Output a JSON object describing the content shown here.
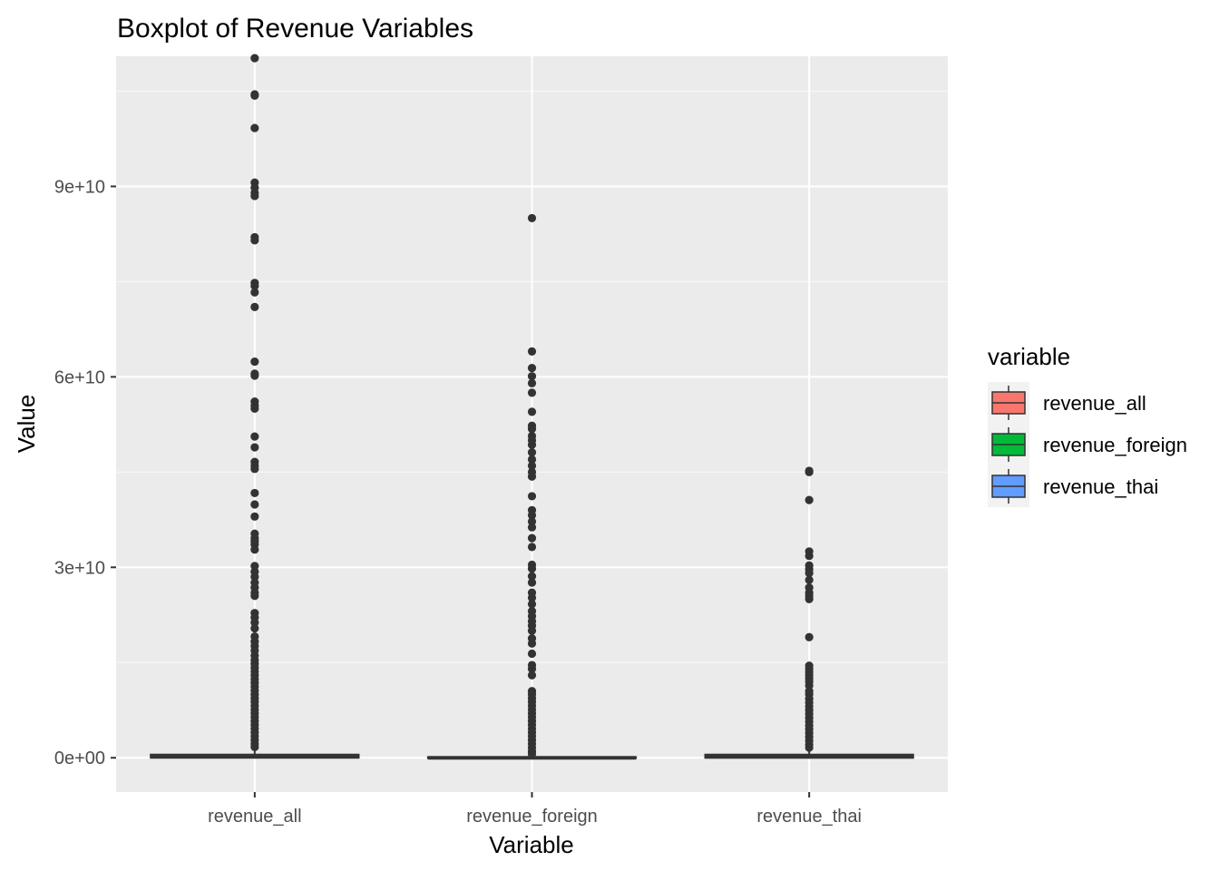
{
  "chart_data": {
    "type": "boxplot",
    "title": "Boxplot of Revenue Variables",
    "xlabel": "Variable",
    "ylabel": "Value",
    "ylim": [
      -5400000000,
      110500000000
    ],
    "y_ticks": [
      {
        "value": 0,
        "label": "0e+00"
      },
      {
        "value": 30000000000,
        "label": "3e+10"
      },
      {
        "value": 60000000000,
        "label": "6e+10"
      },
      {
        "value": 90000000000,
        "label": "9e+10"
      }
    ],
    "y_minor_ticks": [
      15000000000,
      45000000000,
      75000000000,
      105000000000
    ],
    "grid": true,
    "legend": {
      "title": "variable",
      "position": "right",
      "entries": [
        {
          "label": "revenue_all",
          "color": "#F8766D"
        },
        {
          "label": "revenue_foreign",
          "color": "#00BA38"
        },
        {
          "label": "revenue_thai",
          "color": "#619CFF"
        }
      ]
    },
    "categories": [
      "revenue_all",
      "revenue_foreign",
      "revenue_thai"
    ],
    "series": [
      {
        "name": "revenue_all",
        "color": "#F8766D",
        "q1": 0,
        "median": 200000000,
        "q3": 500000000,
        "whisker_low": 0,
        "whisker_high": 1200000000,
        "outliers": [
          110200000000,
          104500000000,
          104300000000,
          99200000000,
          90600000000,
          89800000000,
          89000000000,
          88500000000,
          82000000000,
          81500000000,
          74800000000,
          74300000000,
          73300000000,
          71000000000,
          62400000000,
          60500000000,
          60200000000,
          56100000000,
          55500000000,
          55000000000,
          50600000000,
          48900000000,
          46600000000,
          46000000000,
          45500000000,
          41700000000,
          39900000000,
          38000000000,
          35300000000,
          34600000000,
          34100000000,
          33600000000,
          32800000000,
          30200000000,
          29300000000,
          28500000000,
          27600000000,
          26800000000,
          26000000000,
          25500000000,
          22800000000,
          22100000000,
          21300000000,
          20400000000,
          19100000000,
          18300000000,
          17600000000,
          16900000000,
          16100000000,
          15400000000,
          14800000000,
          14200000000,
          13600000000,
          13000000000,
          12400000000,
          11800000000,
          11200000000,
          10600000000,
          10000000000,
          9400000000,
          8800000000,
          8200000000,
          7600000000,
          7000000000,
          6400000000,
          5800000000,
          5200000000,
          4600000000,
          4000000000,
          3400000000,
          2800000000,
          2200000000,
          1700000000
        ]
      },
      {
        "name": "revenue_foreign",
        "color": "#00BA38",
        "q1": 0,
        "median": 0,
        "q3": 100000000,
        "whisker_low": 0,
        "whisker_high": 300000000,
        "outliers": [
          85000000000,
          64000000000,
          61400000000,
          60100000000,
          59000000000,
          57500000000,
          54500000000,
          52300000000,
          51800000000,
          50700000000,
          50000000000,
          49300000000,
          48100000000,
          47000000000,
          46000000000,
          45000000000,
          44300000000,
          41200000000,
          39000000000,
          38200000000,
          37200000000,
          36300000000,
          34600000000,
          33200000000,
          30400000000,
          29800000000,
          28600000000,
          27600000000,
          26000000000,
          25200000000,
          24200000000,
          23100000000,
          22300000000,
          21500000000,
          20800000000,
          20000000000,
          18800000000,
          18000000000,
          16400000000,
          14600000000,
          14000000000,
          13000000000,
          10500000000,
          10000000000,
          9400000000,
          8800000000,
          8200000000,
          7600000000,
          7000000000,
          6400000000,
          5800000000,
          5200000000,
          4600000000,
          4000000000,
          3400000000,
          2800000000,
          2200000000,
          1600000000,
          1000000000,
          600000000
        ]
      },
      {
        "name": "revenue_thai",
        "color": "#619CFF",
        "q1": 0,
        "median": 150000000,
        "q3": 500000000,
        "whisker_low": 0,
        "whisker_high": 1200000000,
        "outliers": [
          45200000000,
          45000000000,
          40600000000,
          32500000000,
          31800000000,
          30300000000,
          29700000000,
          29100000000,
          28000000000,
          26800000000,
          26000000000,
          25500000000,
          25000000000,
          19000000000,
          14500000000,
          14000000000,
          13500000000,
          13000000000,
          12500000000,
          12000000000,
          11400000000,
          10500000000,
          10000000000,
          9300000000,
          8700000000,
          8100000000,
          7500000000,
          6900000000,
          6300000000,
          5700000000,
          5100000000,
          4500000000,
          3900000000,
          3300000000,
          2700000000,
          2100000000,
          1600000000
        ]
      }
    ]
  }
}
